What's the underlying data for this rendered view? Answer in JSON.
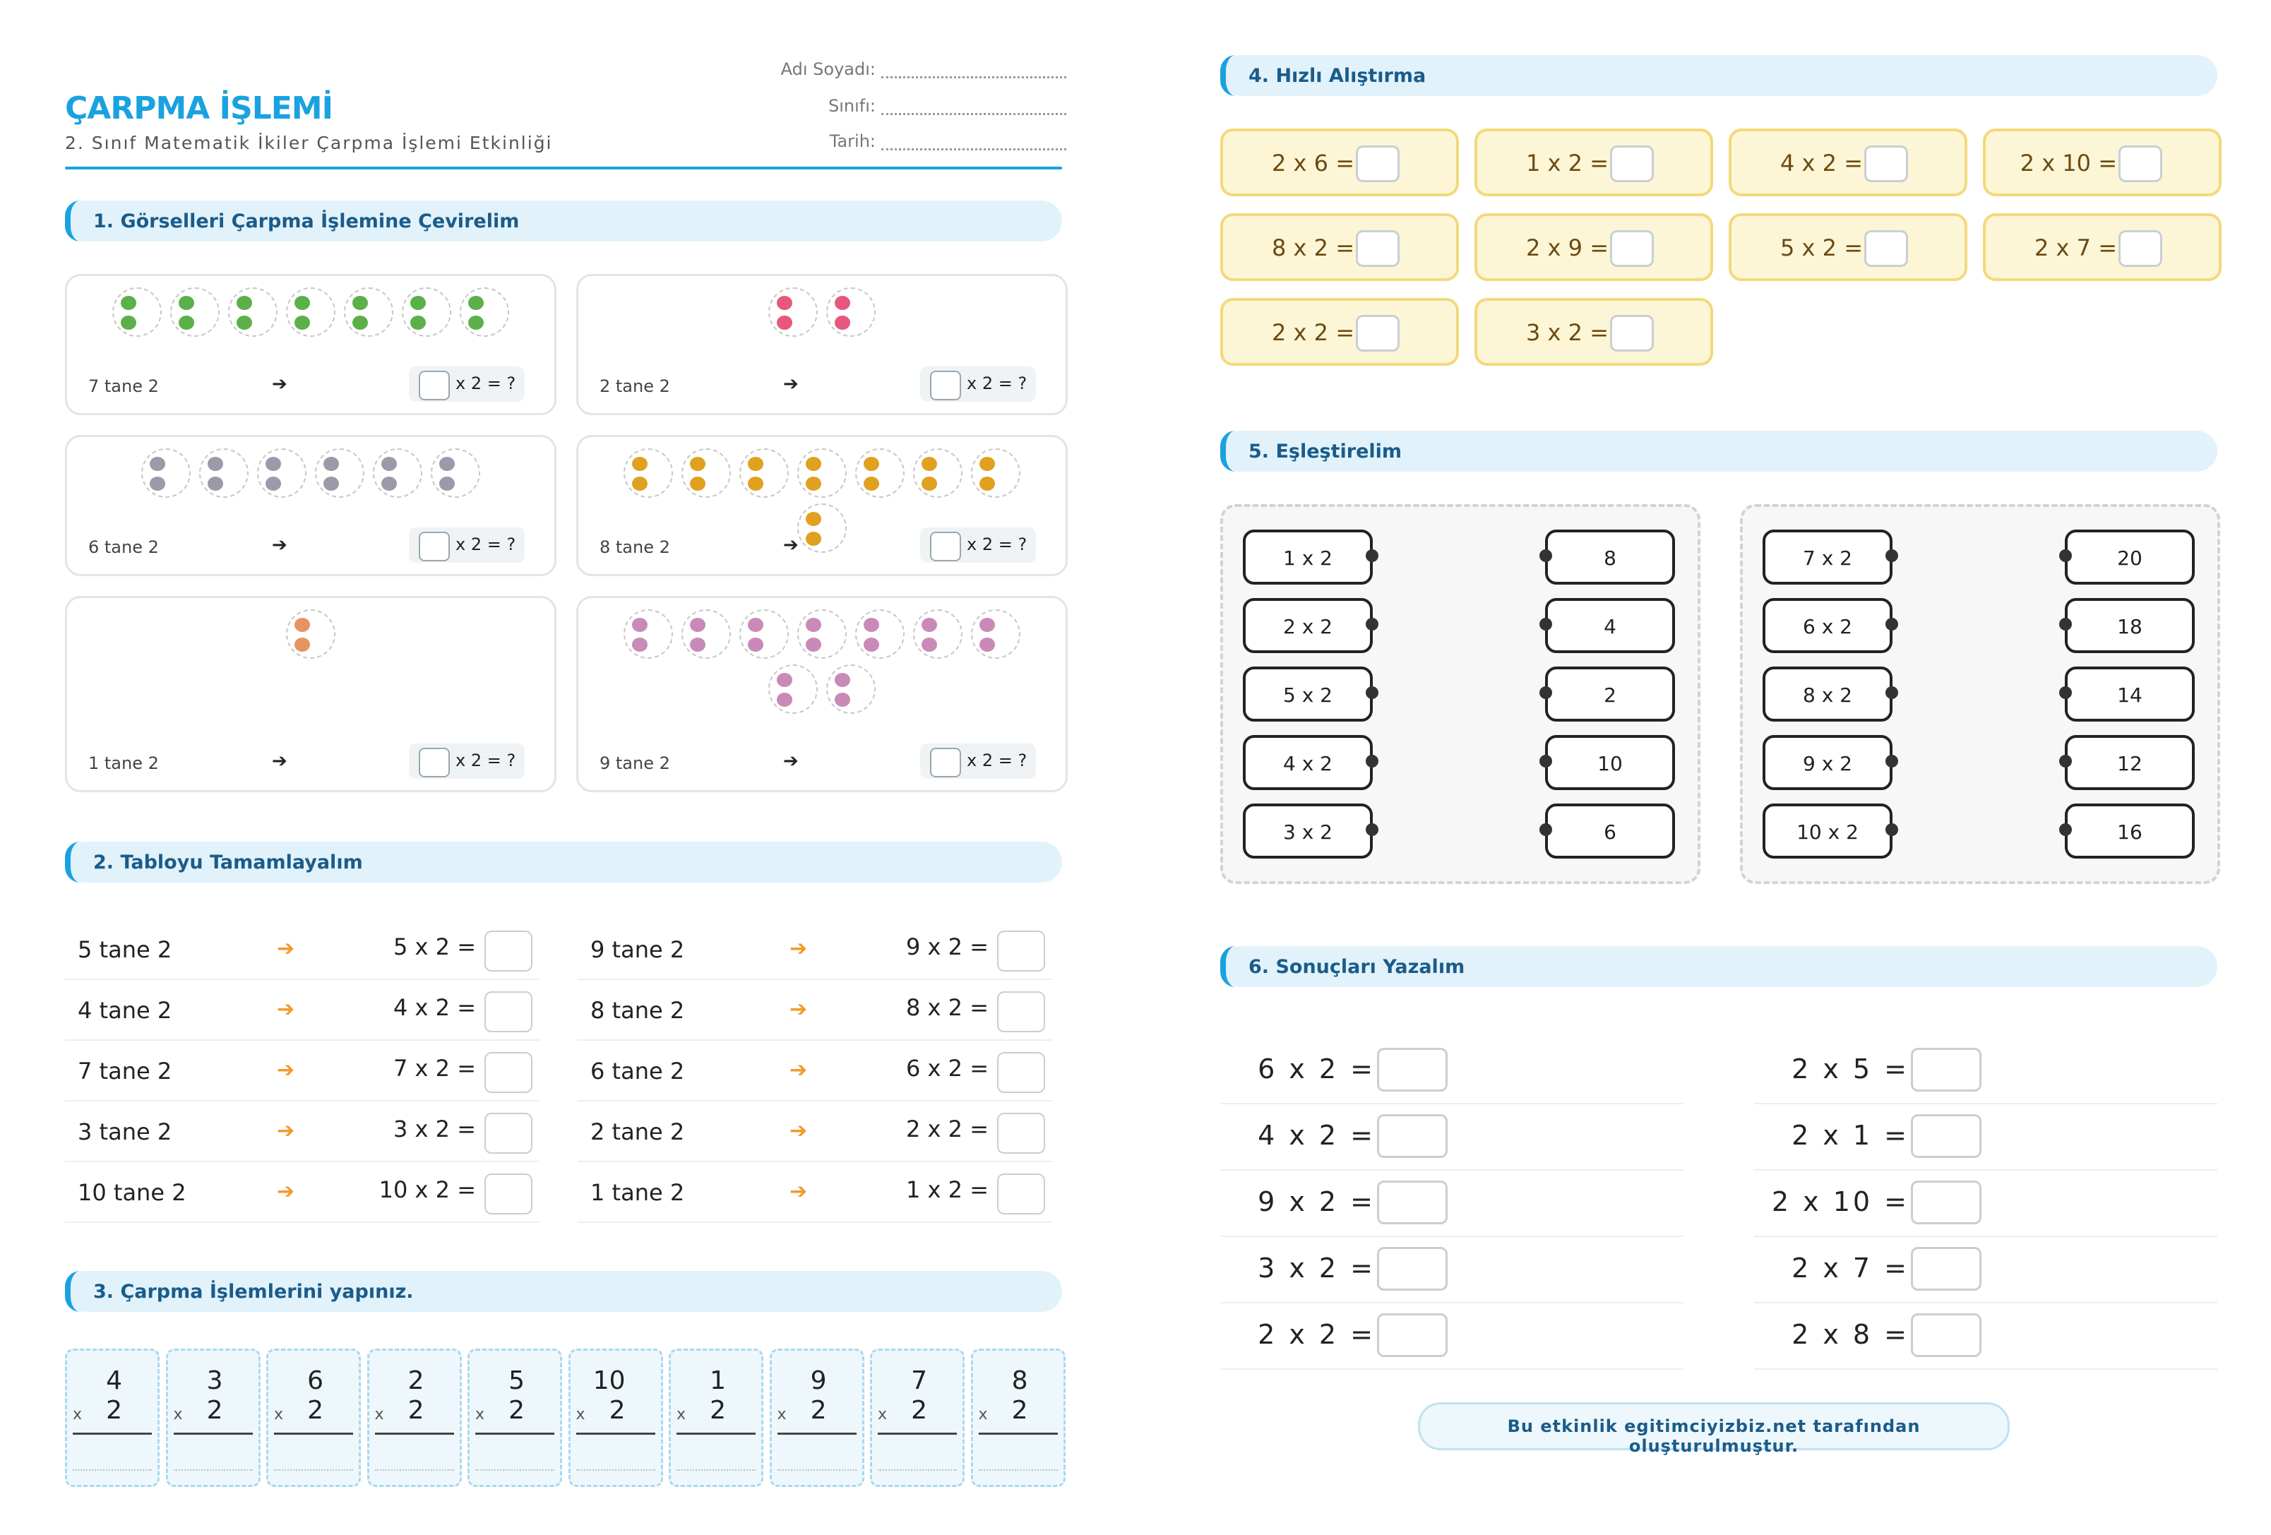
{
  "header": {
    "title": "ÇARPMA İŞLEMİ",
    "subtitle": "2. Sınıf Matematik İkiler Çarpma İşlemi Etkinliği",
    "fields": [
      "Adı Soyadı:",
      "Sınıfı:",
      "Tarih:"
    ]
  },
  "section1": {
    "title": "1. Görselleri Çarpma İşlemine Çevirelim",
    "cards": [
      {
        "count_label": "7 tane 2",
        "arrow": "➔",
        "expr": "x 2 = ?",
        "icon": "leaf-icon",
        "color": "#5bb04a",
        "groups": 7
      },
      {
        "count_label": "2 tane 2",
        "arrow": "➔",
        "expr": "x 2 = ?",
        "icon": "flower-icon",
        "color": "#e8577d",
        "groups": 2
      },
      {
        "count_label": "6 tane 2",
        "arrow": "➔",
        "expr": "x 2 = ?",
        "icon": "elephant-icon",
        "color": "#9a9aa8",
        "groups": 6
      },
      {
        "count_label": "8 tane 2",
        "arrow": "➔",
        "expr": "x 2 = ?",
        "icon": "bee-icon",
        "color": "#e0a020",
        "groups": 8
      },
      {
        "count_label": "1 tane 2",
        "arrow": "➔",
        "expr": "x 2 = ?",
        "icon": "bear-icon",
        "color": "#e79461",
        "groups": 1
      },
      {
        "count_label": "9 tane 2",
        "arrow": "➔",
        "expr": "x 2 = ?",
        "icon": "mouse-icon",
        "color": "#c98ab8",
        "groups": 9
      }
    ]
  },
  "section2": {
    "title": "2. Tabloyu Tamamlayalım",
    "left": [
      {
        "label": "5 tane 2",
        "expr": "5 x 2 ="
      },
      {
        "label": "4 tane 2",
        "expr": "4 x 2 ="
      },
      {
        "label": "7 tane 2",
        "expr": "7 x 2 ="
      },
      {
        "label": "3 tane 2",
        "expr": "3 x 2 ="
      },
      {
        "label": "10 tane 2",
        "expr": "10 x 2 ="
      }
    ],
    "right": [
      {
        "label": "9 tane 2",
        "expr": "9 x 2 ="
      },
      {
        "label": "8 tane 2",
        "expr": "8 x 2 ="
      },
      {
        "label": "6 tane 2",
        "expr": "6 x 2 ="
      },
      {
        "label": "2 tane 2",
        "expr": "2 x 2 ="
      },
      {
        "label": "1 tane 2",
        "expr": "1 x 2 ="
      }
    ],
    "arrow": "➔"
  },
  "section3": {
    "title": "3. Çarpma İşlemlerini yapınız.",
    "ops": [
      {
        "a": "4",
        "b": "2"
      },
      {
        "a": "3",
        "b": "2"
      },
      {
        "a": "6",
        "b": "2"
      },
      {
        "a": "2",
        "b": "2"
      },
      {
        "a": "5",
        "b": "2"
      },
      {
        "a": "10",
        "b": "2"
      },
      {
        "a": "1",
        "b": "2"
      },
      {
        "a": "9",
        "b": "2"
      },
      {
        "a": "7",
        "b": "2"
      },
      {
        "a": "8",
        "b": "2"
      }
    ],
    "times_sign": "x"
  },
  "section4": {
    "title": "4. Hızlı Alıştırma",
    "items": [
      "2 x 6 =",
      "1 x 2 =",
      "4 x 2 =",
      "2 x 10 =",
      "8 x 2 =",
      "2 x 9 =",
      "5 x 2 =",
      "2 x 7 =",
      "2 x 2 =",
      "3 x 2 ="
    ]
  },
  "section5": {
    "title": "5. Eşleştirelim",
    "panel1": {
      "left": [
        "1 x 2",
        "2 x 2",
        "5 x 2",
        "4 x 2",
        "3 x 2"
      ],
      "right": [
        "8",
        "4",
        "2",
        "10",
        "6"
      ]
    },
    "panel2": {
      "left": [
        "7 x 2",
        "6 x 2",
        "8 x 2",
        "9 x 2",
        "10 x 2"
      ],
      "right": [
        "20",
        "18",
        "14",
        "12",
        "16"
      ]
    }
  },
  "section6": {
    "title": "6. Sonuçları Yazalım",
    "left": [
      "6 x 2 =",
      "4 x 2 =",
      "9 x 2 =",
      "3 x 2 =",
      "2 x 2 ="
    ],
    "right": [
      "2 x 5 =",
      "2 x 1 =",
      "2 x 10 =",
      "2 x 7 =",
      "2 x 8 ="
    ]
  },
  "footer": "Bu etkinlik egitimciyizbiz.net tarafından oluşturulmuştur.",
  "colors": {
    "accent": "#1aa2e0",
    "section_bg": "#e2f2fb",
    "quick_bg": "#fcf6d6",
    "quick_border": "#f3d97c",
    "arrow": "#f39a2a"
  }
}
